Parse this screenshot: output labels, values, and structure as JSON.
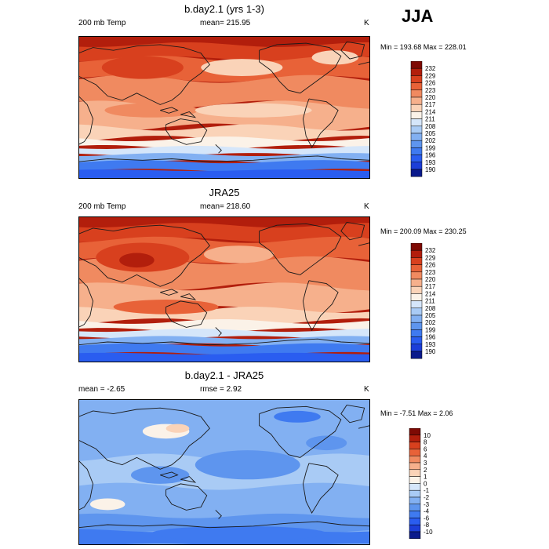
{
  "season": "JJA",
  "panels": [
    {
      "title": "b.day2.1 (yrs 1-3)",
      "left": "200 mb Temp",
      "center": "mean= 215.95",
      "right": "K",
      "minmax": "Min = 193.68 Max = 228.01",
      "cbar_labels": [
        "232",
        "229",
        "226",
        "223",
        "220",
        "217",
        "214",
        "211",
        "208",
        "205",
        "202",
        "199",
        "196",
        "193",
        "190"
      ]
    },
    {
      "title": "JRA25",
      "left": "200 mb Temp",
      "center": "mean= 218.60",
      "right": "K",
      "minmax": "Min = 200.09 Max = 230.25",
      "cbar_labels": [
        "232",
        "229",
        "226",
        "223",
        "220",
        "217",
        "214",
        "211",
        "208",
        "205",
        "202",
        "199",
        "196",
        "193",
        "190"
      ]
    },
    {
      "title": "b.day2.1 - JRA25",
      "left": "mean =  -2.65",
      "center": "rmse =   2.92",
      "right": "K",
      "minmax": "Min = -7.51 Max =   2.06",
      "cbar_labels": [
        "10",
        "8",
        "6",
        "4",
        "3",
        "2",
        "1",
        "0",
        "-1",
        "-2",
        "-3",
        "-4",
        "-6",
        "-8",
        "-10"
      ]
    }
  ],
  "chart_data": [
    {
      "type": "heatmap",
      "title": "b.day2.1 (yrs 1-3)",
      "variable": "200 mb Temp",
      "units": "K",
      "mean": 215.95,
      "min": 193.68,
      "max": 228.01,
      "levels": [
        190,
        193,
        196,
        199,
        202,
        205,
        208,
        211,
        214,
        217,
        220,
        223,
        226,
        229,
        232
      ],
      "colors": [
        "#0a1a8c",
        "#1c3ed8",
        "#2a5df0",
        "#3f7af0",
        "#5e95ee",
        "#82b0f2",
        "#a9cbf5",
        "#d5e6fa",
        "#fbf2e8",
        "#fad3b8",
        "#f6b08c",
        "#f08a60",
        "#e86238",
        "#d8401e",
        "#b21e0c",
        "#7e0a04"
      ]
    },
    {
      "type": "heatmap",
      "title": "JRA25",
      "variable": "200 mb Temp",
      "units": "K",
      "mean": 218.6,
      "min": 200.09,
      "max": 230.25,
      "levels": [
        190,
        193,
        196,
        199,
        202,
        205,
        208,
        211,
        214,
        217,
        220,
        223,
        226,
        229,
        232
      ],
      "colors": [
        "#0a1a8c",
        "#1c3ed8",
        "#2a5df0",
        "#3f7af0",
        "#5e95ee",
        "#82b0f2",
        "#a9cbf5",
        "#d5e6fa",
        "#fbf2e8",
        "#fad3b8",
        "#f6b08c",
        "#f08a60",
        "#e86238",
        "#d8401e",
        "#b21e0c",
        "#7e0a04"
      ]
    },
    {
      "type": "heatmap",
      "title": "b.day2.1 - JRA25",
      "units": "K",
      "mean": -2.65,
      "rmse": 2.92,
      "min": -7.51,
      "max": 2.06,
      "levels": [
        -10,
        -8,
        -6,
        -4,
        -3,
        -2,
        -1,
        0,
        1,
        2,
        3,
        4,
        6,
        8,
        10
      ],
      "colors": [
        "#0a1a8c",
        "#1c3ed8",
        "#2a5df0",
        "#3f7af0",
        "#5e95ee",
        "#82b0f2",
        "#a9cbf5",
        "#d5e6fa",
        "#fbf2e8",
        "#fad3b8",
        "#f6b08c",
        "#f08a60",
        "#e86238",
        "#d8401e",
        "#b21e0c",
        "#7e0a04"
      ]
    }
  ]
}
